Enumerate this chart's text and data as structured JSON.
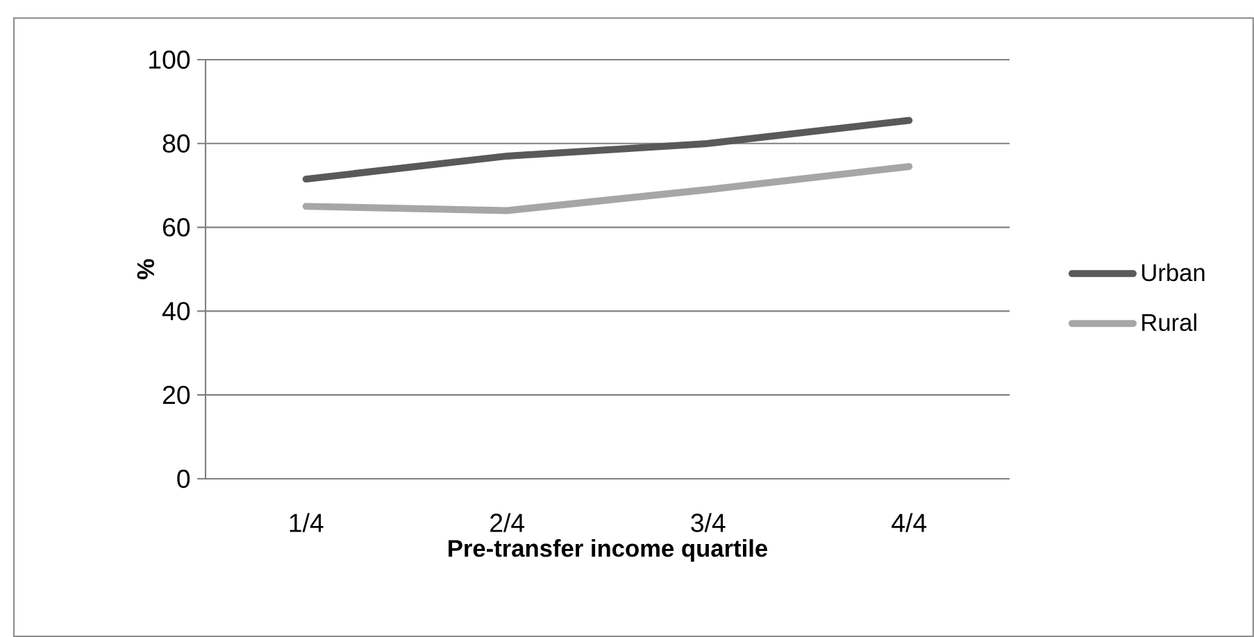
{
  "chart_data": {
    "type": "line",
    "xlabel": "Pre-transfer income quartile",
    "ylabel": "%",
    "categories": [
      "1/4",
      "2/4",
      "3/4",
      "4/4"
    ],
    "series": [
      {
        "name": "Urban",
        "color": "#595959",
        "values": [
          71.5,
          77,
          80,
          85.5
        ]
      },
      {
        "name": "Rural",
        "color": "#a6a6a6",
        "values": [
          65,
          64,
          69,
          74.5
        ]
      }
    ],
    "ylim": [
      0,
      100
    ],
    "yticks": [
      0,
      20,
      40,
      60,
      80,
      100
    ],
    "grid": "y",
    "legend": "right",
    "marker": "none",
    "line_style": "solid"
  }
}
